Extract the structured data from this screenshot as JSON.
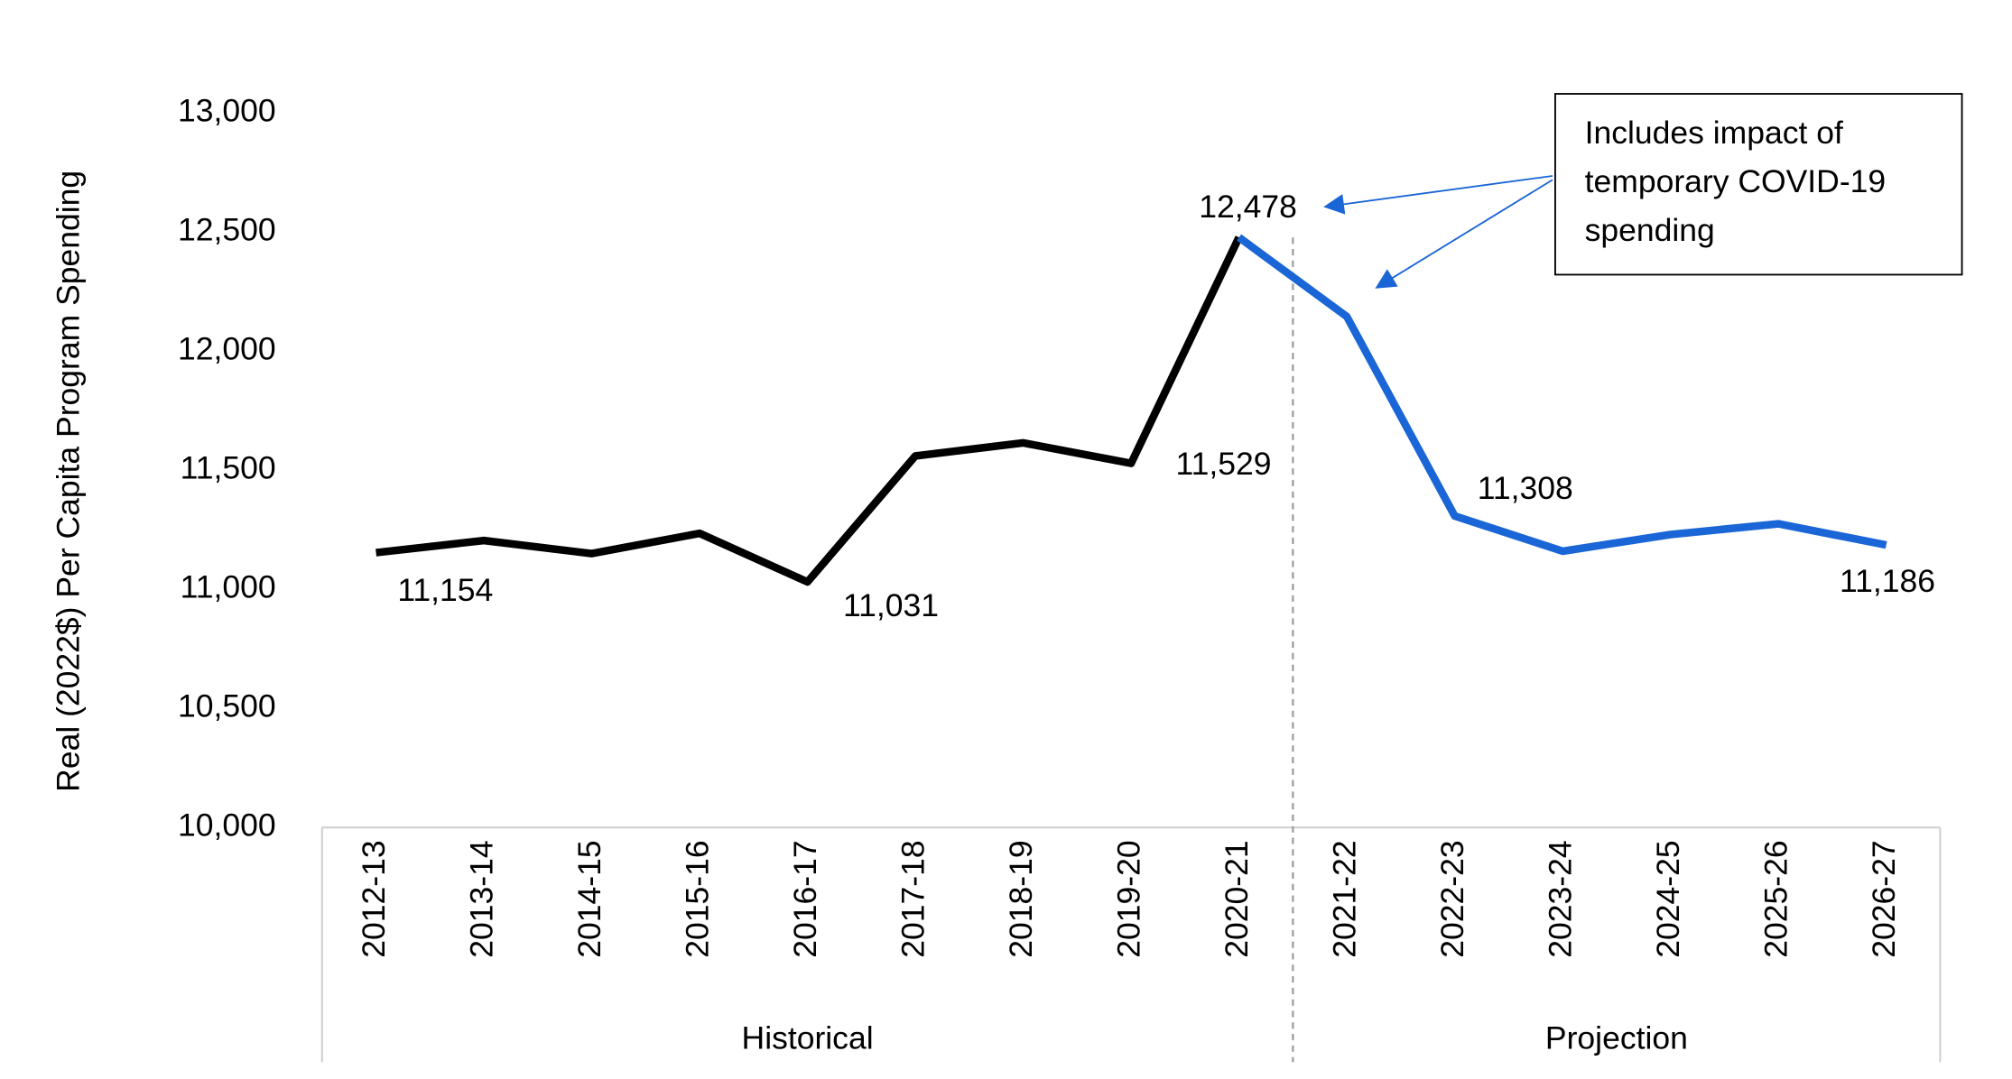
{
  "chart_data": {
    "type": "line",
    "ylabel": "Real (2022$) Per Capita Program Spending",
    "categories": [
      "2012-13",
      "2013-14",
      "2014-15",
      "2015-16",
      "2016-17",
      "2017-18",
      "2018-19",
      "2019-20",
      "2020-21",
      "2021-22",
      "2022-23",
      "2023-24",
      "2024-25",
      "2025-26",
      "2026-27"
    ],
    "series": [
      {
        "name": "Historical",
        "color": "#000000",
        "values": [
          11154,
          11205,
          11150,
          11235,
          11031,
          11560,
          11615,
          11529,
          12478,
          null,
          null,
          null,
          null,
          null,
          null
        ],
        "value_labels": [
          "11,154",
          null,
          null,
          null,
          "11,031",
          null,
          null,
          "11,529",
          "12,478",
          null,
          null,
          null,
          null,
          null,
          null
        ]
      },
      {
        "name": "Projection",
        "color": "#1a66d6",
        "values": [
          null,
          null,
          null,
          null,
          null,
          null,
          null,
          null,
          12478,
          12145,
          11308,
          11160,
          11230,
          11275,
          11186
        ],
        "value_labels": [
          null,
          null,
          null,
          null,
          null,
          null,
          null,
          null,
          null,
          null,
          "11,308",
          null,
          null,
          null,
          "11,186"
        ]
      }
    ],
    "groups": [
      {
        "label": "Historical",
        "count": 9
      },
      {
        "label": "Projection",
        "count": 6
      }
    ],
    "ylim": [
      10000,
      13000
    ],
    "yticks": [
      {
        "value": 10000,
        "label": "10,000"
      },
      {
        "value": 10500,
        "label": "10,500"
      },
      {
        "value": 11000,
        "label": "11,000"
      },
      {
        "value": 11500,
        "label": "11,500"
      },
      {
        "value": 12000,
        "label": "12,000"
      },
      {
        "value": 12500,
        "label": "12,500"
      },
      {
        "value": 13000,
        "label": "13,000"
      }
    ],
    "grid": false,
    "annotation": {
      "lines": [
        "Includes impact of",
        "temporary COVID-19",
        "spending"
      ],
      "color": "#1a66d6"
    }
  }
}
